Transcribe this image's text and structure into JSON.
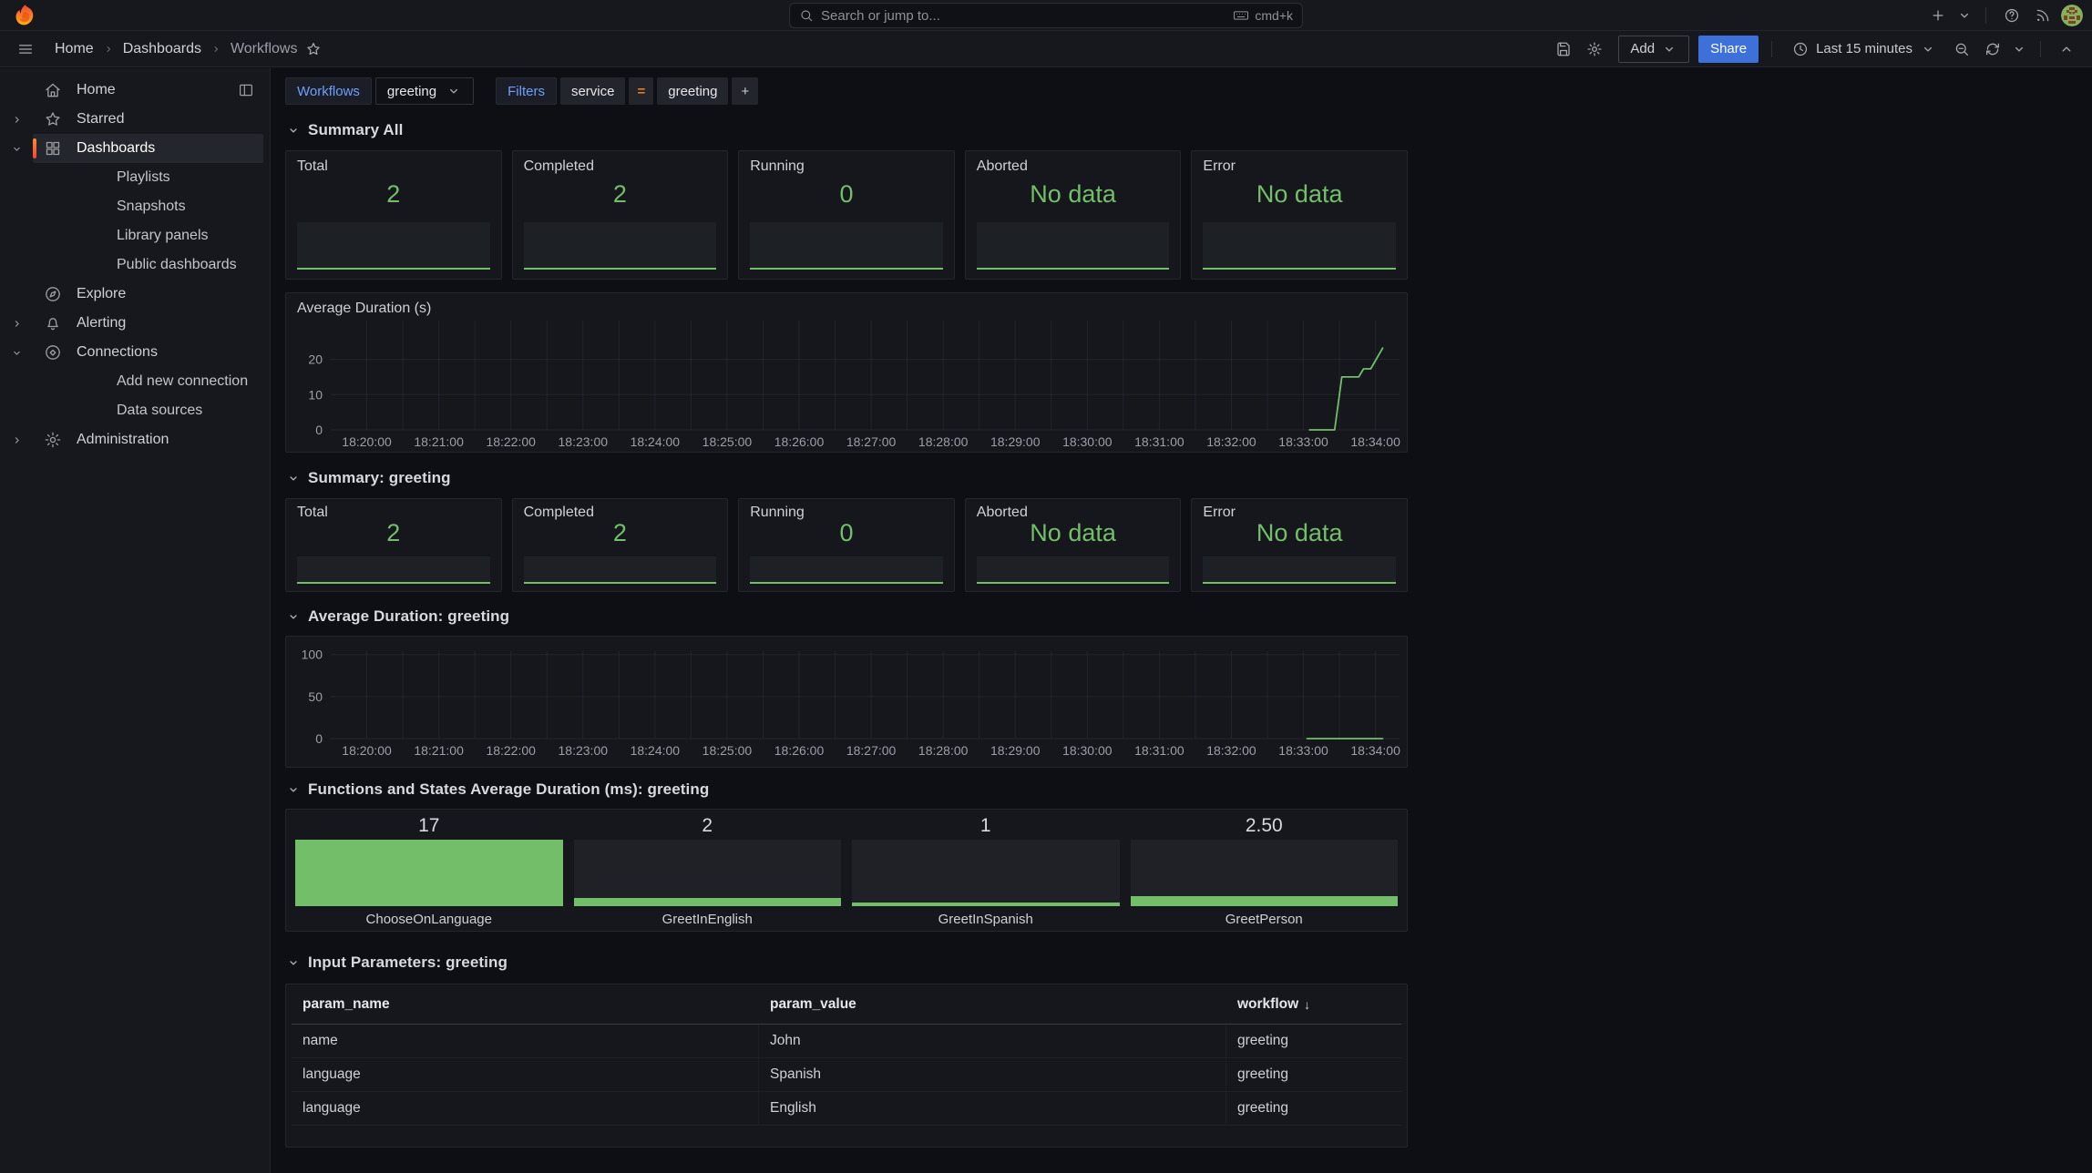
{
  "topbar": {
    "search_placeholder": "Search or jump to...",
    "search_shortcut": "cmd+k"
  },
  "toolbar": {
    "breadcrumb": [
      "Home",
      "Dashboards",
      "Workflows"
    ],
    "add_label": "Add",
    "share_label": "Share",
    "time_range": "Last 15 minutes"
  },
  "sidebar": {
    "items": [
      {
        "label": "Home",
        "icon": "home",
        "trailing": "dock"
      },
      {
        "label": "Starred",
        "icon": "star",
        "expand": "right"
      },
      {
        "label": "Dashboards",
        "icon": "apps",
        "expand": "down",
        "active": true
      },
      {
        "label": "Playlists",
        "child": true
      },
      {
        "label": "Snapshots",
        "child": true
      },
      {
        "label": "Library panels",
        "child": true
      },
      {
        "label": "Public dashboards",
        "child": true
      },
      {
        "label": "Explore",
        "icon": "compass"
      },
      {
        "label": "Alerting",
        "icon": "bell",
        "expand": "right"
      },
      {
        "label": "Connections",
        "icon": "plug",
        "expand": "down"
      },
      {
        "label": "Add new connection",
        "child": true
      },
      {
        "label": "Data sources",
        "child": true
      },
      {
        "label": "Administration",
        "icon": "gear",
        "expand": "right"
      }
    ]
  },
  "filterbar": {
    "variable_label": "Workflows",
    "variable_value": "greeting",
    "filters_label": "Filters",
    "filter_key": "service",
    "filter_op": "=",
    "filter_value": "greeting",
    "add_filter": "+"
  },
  "sections": {
    "summary_all": {
      "title": "Summary All"
    },
    "summary_greeting": {
      "title": "Summary: greeting"
    },
    "avg_duration_greeting": {
      "title": "Average Duration: greeting"
    },
    "functions": {
      "title": "Functions and States Average Duration (ms): greeting"
    },
    "input_params": {
      "title": "Input Parameters: greeting"
    }
  },
  "stats_all": [
    {
      "title": "Total",
      "value": "2"
    },
    {
      "title": "Completed",
      "value": "2"
    },
    {
      "title": "Running",
      "value": "0"
    },
    {
      "title": "Aborted",
      "value": "No data"
    },
    {
      "title": "Error",
      "value": "No data"
    }
  ],
  "stats_greeting": [
    {
      "title": "Total",
      "value": "2"
    },
    {
      "title": "Completed",
      "value": "2"
    },
    {
      "title": "Running",
      "value": "0"
    },
    {
      "title": "Aborted",
      "value": "No data"
    },
    {
      "title": "Error",
      "value": "No data"
    }
  ],
  "chart_data": [
    {
      "id": "avg_duration_all",
      "type": "line",
      "title": "Average Duration (s)",
      "yticks": [
        0,
        10,
        20
      ],
      "ylim": [
        0,
        31
      ],
      "xlim_seconds": [
        1170,
        2060
      ],
      "x_start_seconds": 1200,
      "x_step_seconds": 60,
      "x_labels": [
        "18:20:00",
        "18:21:00",
        "18:22:00",
        "18:23:00",
        "18:24:00",
        "18:25:00",
        "18:26:00",
        "18:27:00",
        "18:28:00",
        "18:29:00",
        "18:30:00",
        "18:31:00",
        "18:32:00",
        "18:33:00",
        "18:34:00"
      ],
      "series": [
        {
          "name": "avg_duration_s",
          "color": "#73bf69",
          "points_s_v": [
            [
              1985,
              0
            ],
            [
              2006,
              0
            ],
            [
              2012,
              15
            ],
            [
              2026,
              15
            ],
            [
              2030,
              17.3
            ],
            [
              2036,
              17.3
            ],
            [
              2046,
              23.2
            ]
          ]
        }
      ],
      "legend": "off",
      "grid": "on"
    },
    {
      "id": "avg_duration_greeting",
      "type": "line",
      "title": "Average Duration: greeting",
      "yticks": [
        0,
        50,
        100
      ],
      "ylim": [
        0,
        104
      ],
      "xlim_seconds": [
        1170,
        2060
      ],
      "x_start_seconds": 1200,
      "x_step_seconds": 60,
      "x_labels": [
        "18:20:00",
        "18:21:00",
        "18:22:00",
        "18:23:00",
        "18:24:00",
        "18:25:00",
        "18:26:00",
        "18:27:00",
        "18:28:00",
        "18:29:00",
        "18:30:00",
        "18:31:00",
        "18:32:00",
        "18:33:00",
        "18:34:00"
      ],
      "series": [
        {
          "name": "avg_duration_greeting_s",
          "color": "#73bf69",
          "points_s_v": [
            [
              1983,
              0
            ],
            [
              2046,
              0
            ]
          ]
        }
      ],
      "legend": "off",
      "grid": "on"
    },
    {
      "id": "functions_avg_duration",
      "type": "bar",
      "title": "Functions and States Average Duration (ms): greeting",
      "categories": [
        "ChooseOnLanguage",
        "GreetInEnglish",
        "GreetInSpanish",
        "GreetPerson"
      ],
      "values": [
        17,
        2,
        1,
        2.5
      ],
      "value_labels": [
        "17",
        "2",
        "1",
        "2.50"
      ],
      "ylim": [
        0,
        17
      ],
      "bar_color": "#73bf69"
    },
    {
      "id": "input_parameters",
      "type": "table",
      "title": "Input Parameters: greeting",
      "columns": [
        "param_name",
        "param_value",
        "workflow"
      ],
      "sort": {
        "column": "workflow",
        "direction": "desc",
        "arrow": "↓"
      },
      "rows": [
        [
          "name",
          "John",
          "greeting"
        ],
        [
          "language",
          "Spanish",
          "greeting"
        ],
        [
          "language",
          "English",
          "greeting"
        ]
      ]
    }
  ],
  "colors": {
    "green": "#73bf69",
    "primary_blue": "#3d71d9",
    "link_blue": "#6e9fff",
    "operator_orange": "#eb7b18",
    "accent_orange": "#f55f3e"
  }
}
